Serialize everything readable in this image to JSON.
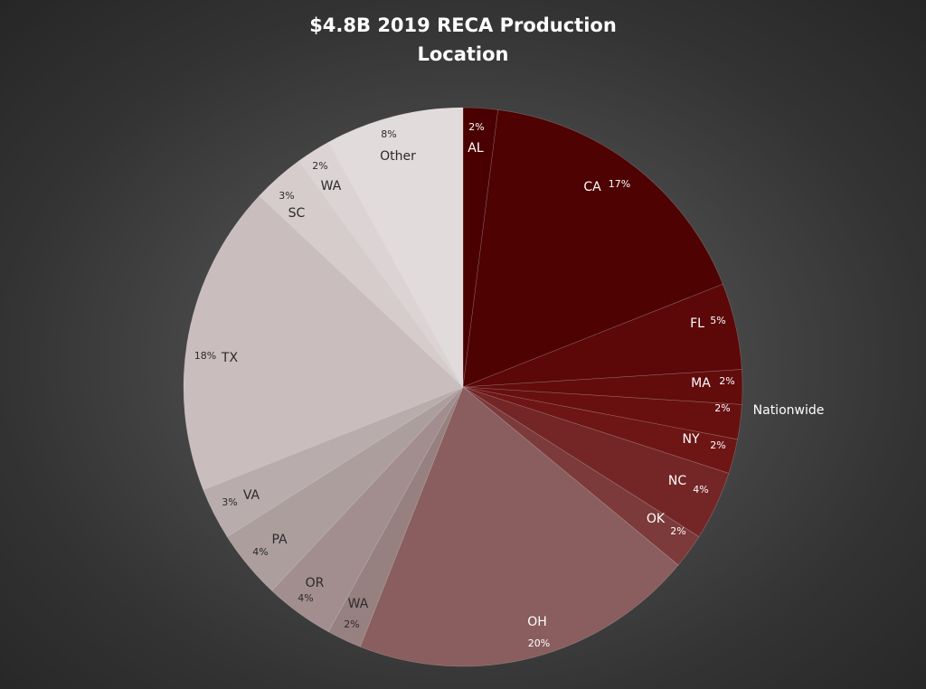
{
  "chart_data": {
    "type": "pie",
    "title_lines": [
      "$4.8B 2019 RECA Production",
      "Location"
    ],
    "start_angle_deg": 0,
    "direction": "clockwise",
    "slices": [
      {
        "label": "AL",
        "pct_label": "2%",
        "value": 2,
        "color": "#4a0000"
      },
      {
        "label": "CA",
        "pct_label": "17%",
        "value": 17,
        "color": "#4e0202"
      },
      {
        "label": "FL",
        "pct_label": "5%",
        "value": 5,
        "color": "#5c0808"
      },
      {
        "label": "MA",
        "pct_label": "2%",
        "value": 2,
        "color": "#620c0c"
      },
      {
        "label": "Nationwide",
        "pct_label": "2%",
        "value": 2,
        "color": "#681010"
      },
      {
        "label": "NY",
        "pct_label": "2%",
        "value": 2,
        "color": "#6e1616"
      },
      {
        "label": "NC",
        "pct_label": "4%",
        "value": 4,
        "color": "#742626"
      },
      {
        "label": "OK",
        "pct_label": "2%",
        "value": 2,
        "color": "#7c3a3a"
      },
      {
        "label": "OH",
        "pct_label": "20%",
        "value": 20,
        "color": "#8a5e5e"
      },
      {
        "label": "WA",
        "pct_label": "2%",
        "value": 2,
        "color": "#978080"
      },
      {
        "label": "OR",
        "pct_label": "4%",
        "value": 4,
        "color": "#a28e8e"
      },
      {
        "label": "PA",
        "pct_label": "4%",
        "value": 4,
        "color": "#ad9e9e"
      },
      {
        "label": "VA",
        "pct_label": "3%",
        "value": 3,
        "color": "#b8acac"
      },
      {
        "label": "TX",
        "pct_label": "18%",
        "value": 18,
        "color": "#c9bdbd"
      },
      {
        "label": "SC",
        "pct_label": "3%",
        "value": 3,
        "color": "#d6cccc"
      },
      {
        "label": "WA",
        "pct_label": "2%",
        "value": 2,
        "color": "#dcd4d4"
      },
      {
        "label": "Other",
        "pct_label": "8%",
        "value": 8,
        "color": "#e2dbdb"
      }
    ]
  }
}
